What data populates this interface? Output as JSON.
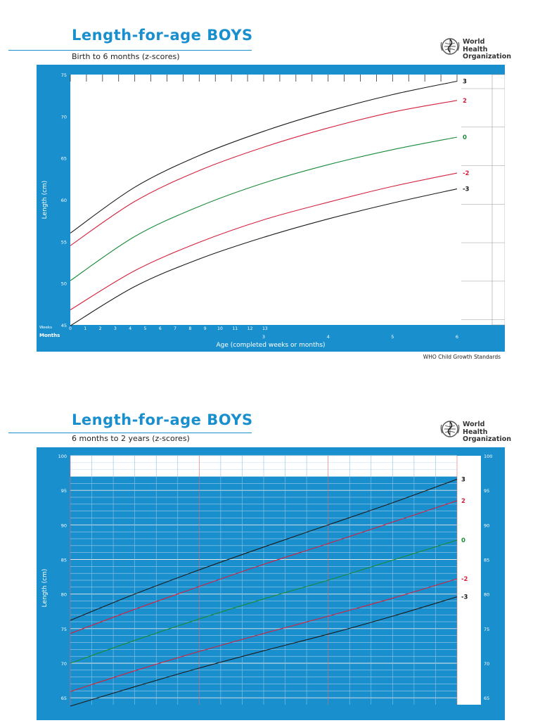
{
  "colors": {
    "brand": "#1a8fcd",
    "zero": "#1a8a3a",
    "two": "#d4213d",
    "three": "#1a1a1a"
  },
  "charts": [
    {
      "title": "Length-for-age BOYS",
      "subtitle": "Birth to 6 months (z-scores)",
      "credit": "WHO Child Growth Standards"
    },
    {
      "title": "Length-for-age BOYS",
      "subtitle": "6 months to 2 years (z-scores)"
    }
  ],
  "org": {
    "line1": "World Health",
    "line2": "Organization",
    "icon": "who-emblem-icon"
  },
  "chart_data": [
    {
      "type": "line",
      "title": "Length-for-age BOYS",
      "subtitle": "Birth to 6 months (z-scores)",
      "xlabel": "Age (completed weeks or months)",
      "ylabel": "Length (cm)",
      "xlim": [
        0,
        6
      ],
      "ylim": [
        45,
        75
      ],
      "yticks": [
        45,
        50,
        55,
        60,
        65,
        70,
        75
      ],
      "weeks_label": "Weeks",
      "months_label": "Months",
      "week_ticks": [
        "0",
        "1",
        "2",
        "3",
        "4",
        "5",
        "6",
        "7",
        "8",
        "9",
        "10",
        "11",
        "12",
        "13"
      ],
      "month_ticks": [
        "0",
        "3",
        "4",
        "5",
        "6"
      ],
      "x": [
        0,
        1,
        2,
        3,
        4,
        5,
        6
      ],
      "series": [
        {
          "name": "3",
          "color": "#1a1a1a",
          "values": [
            56.0,
            61.5,
            65.3,
            68.2,
            70.6,
            72.6,
            74.2
          ]
        },
        {
          "name": "2",
          "color": "#d4213d",
          "values": [
            54.5,
            59.8,
            63.5,
            66.3,
            68.6,
            70.5,
            71.9
          ]
        },
        {
          "name": "0",
          "color": "#1a8a3a",
          "values": [
            50.3,
            55.6,
            59.2,
            62.0,
            64.2,
            66.0,
            67.5
          ]
        },
        {
          "name": "-2",
          "color": "#d4213d",
          "values": [
            46.8,
            51.5,
            54.9,
            57.6,
            59.7,
            61.6,
            63.2
          ]
        },
        {
          "name": "-3",
          "color": "#1a1a1a",
          "values": [
            44.9,
            49.6,
            52.9,
            55.5,
            57.7,
            59.6,
            61.3
          ]
        }
      ]
    },
    {
      "type": "line",
      "title": "Length-for-age BOYS",
      "subtitle": "6 months to 2 years (z-scores)",
      "ylabel": "Length (cm)",
      "xlim": [
        6,
        24
      ],
      "ylim": [
        64,
        100
      ],
      "yticks": [
        65,
        70,
        75,
        80,
        85,
        90,
        95,
        100
      ],
      "x": [
        6,
        9,
        12,
        15,
        18,
        21,
        24
      ],
      "series": [
        {
          "name": "3",
          "color": "#1a1a1a",
          "values": [
            76.2,
            80.0,
            83.5,
            86.8,
            90.0,
            93.2,
            96.6
          ]
        },
        {
          "name": "2",
          "color": "#d4213d",
          "values": [
            74.3,
            77.8,
            81.1,
            84.3,
            87.3,
            90.4,
            93.5
          ]
        },
        {
          "name": "0",
          "color": "#1a8a3a",
          "values": [
            70.0,
            73.3,
            76.4,
            79.3,
            82.0,
            84.9,
            87.8
          ]
        },
        {
          "name": "-2",
          "color": "#d4213d",
          "values": [
            65.9,
            68.9,
            71.7,
            74.3,
            76.8,
            79.4,
            82.2
          ]
        },
        {
          "name": "-3",
          "color": "#1a1a1a",
          "values": [
            63.8,
            66.6,
            69.3,
            71.8,
            74.2,
            76.8,
            79.6
          ]
        }
      ]
    }
  ]
}
